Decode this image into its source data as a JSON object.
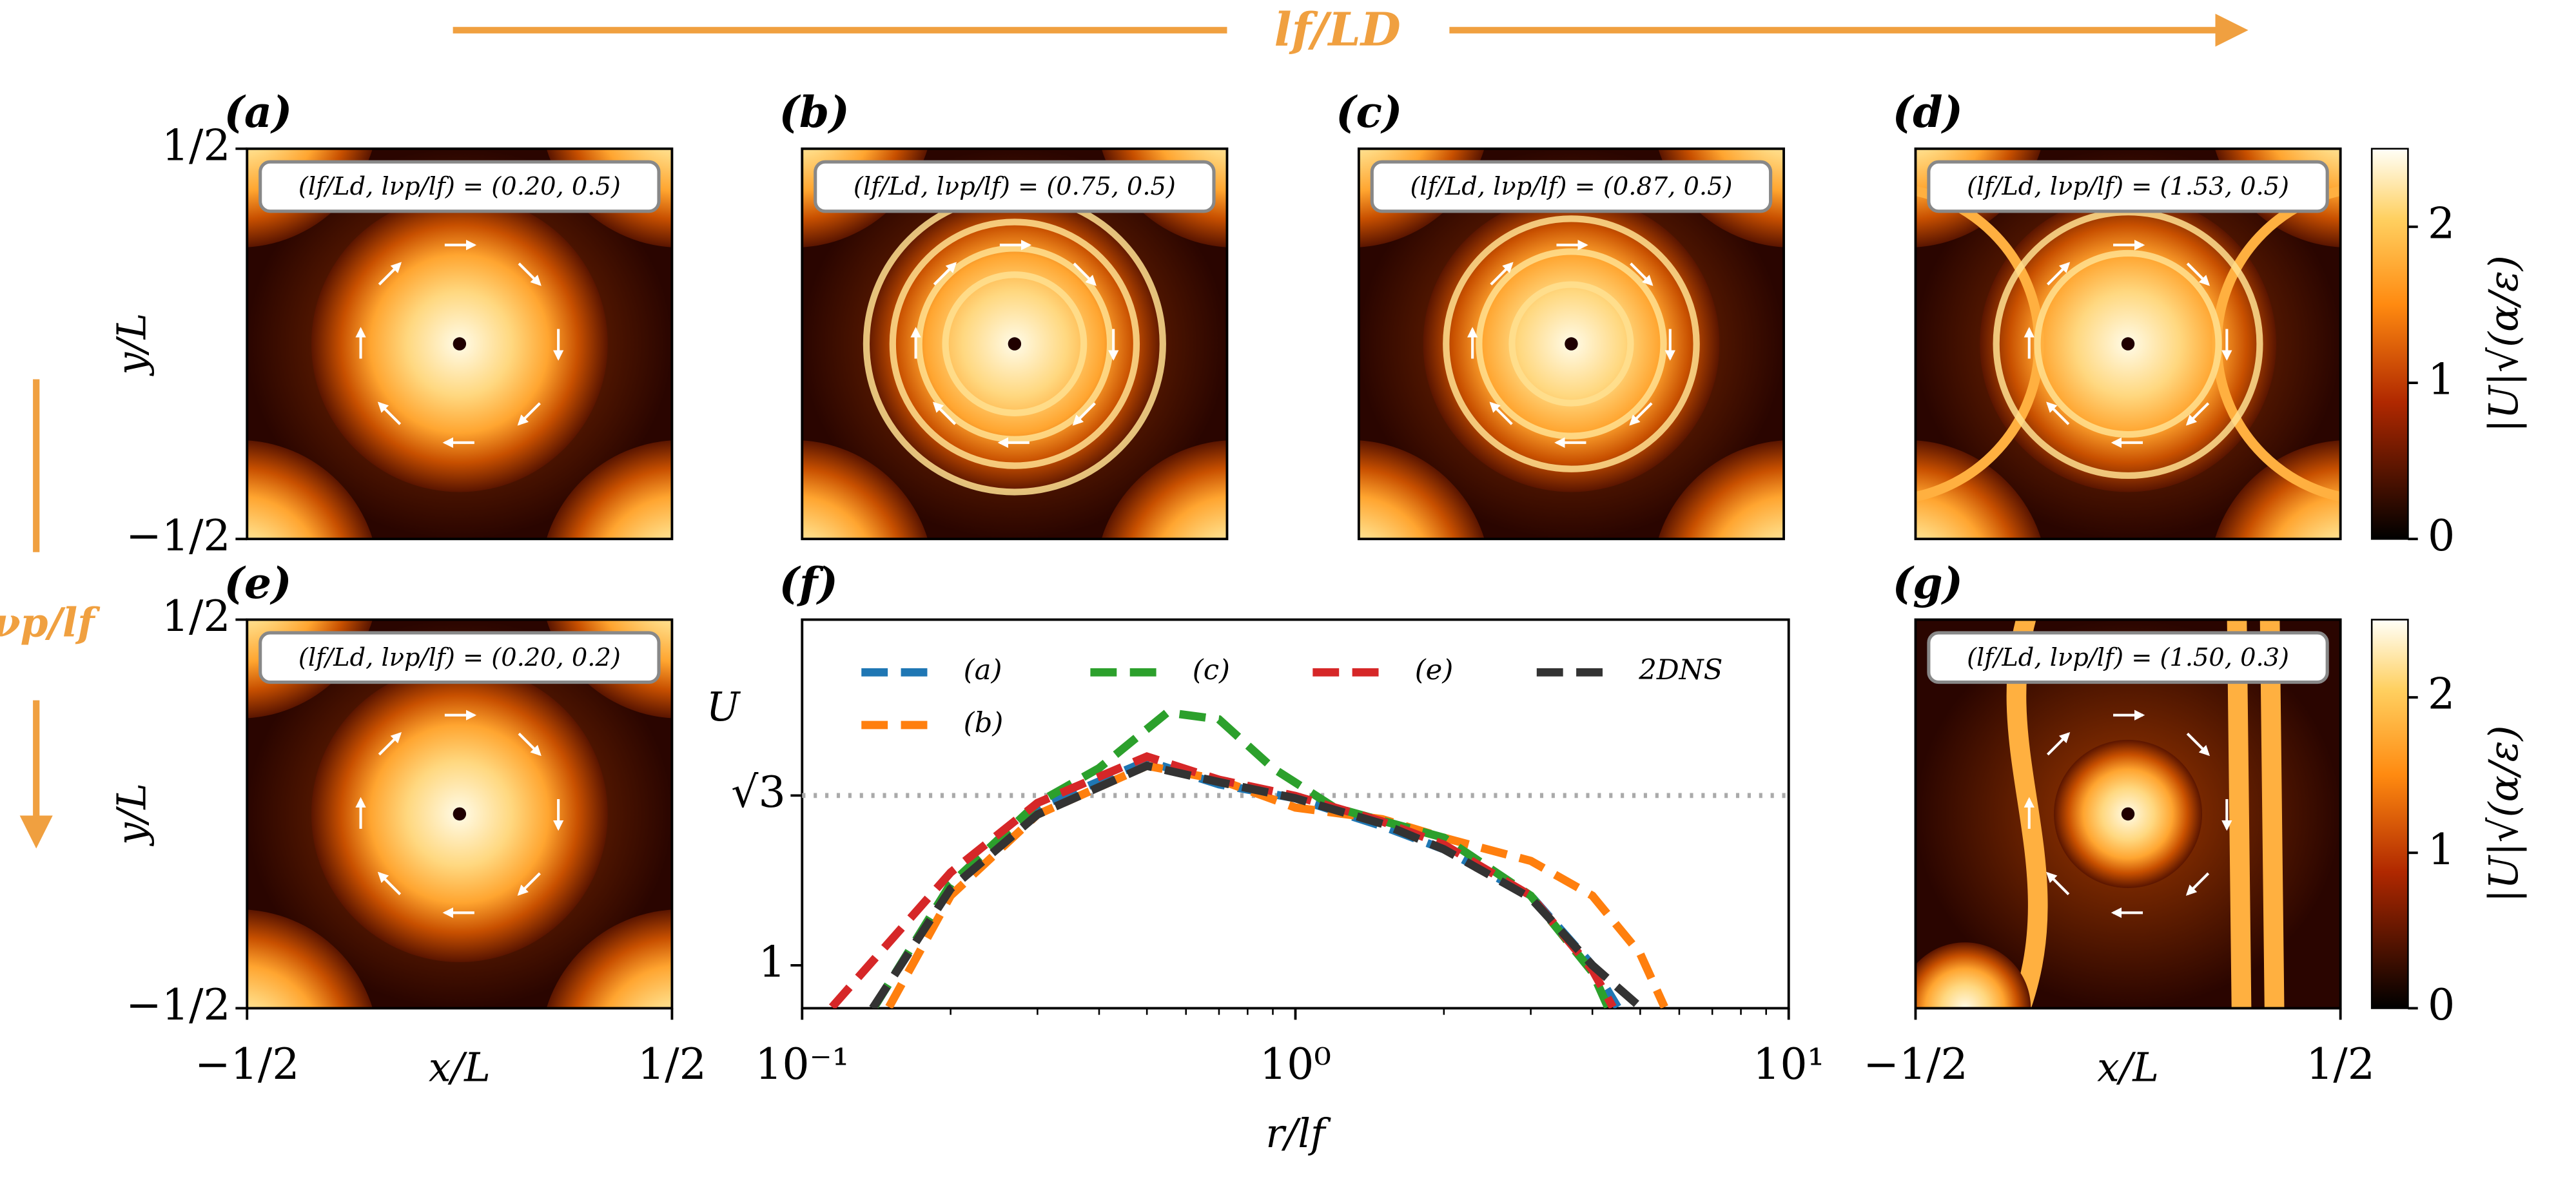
{
  "figure": {
    "top_label": "lf/LD",
    "left_label": "lνp/lf"
  },
  "chart_data": [
    {
      "type": "heatmap",
      "panel": "(a)",
      "annotation": "(lf/Ld, lνp/lf) = (0.20, 0.5)",
      "ylabel": "y/L",
      "xlim": [
        -0.5,
        0.5
      ],
      "ylim": [
        -0.5,
        0.5
      ],
      "yticks": [
        {
          "value": -0.5,
          "label": "−1/2"
        },
        {
          "value": 0.5,
          "label": "1/2"
        }
      ]
    },
    {
      "type": "heatmap",
      "panel": "(b)",
      "annotation": "(lf/Ld, lνp/lf) = (0.75, 0.5)",
      "xlim": [
        -0.5,
        0.5
      ],
      "ylim": [
        -0.5,
        0.5
      ]
    },
    {
      "type": "heatmap",
      "panel": "(c)",
      "annotation": "(lf/Ld, lνp/lf) = (0.87, 0.5)",
      "xlim": [
        -0.5,
        0.5
      ],
      "ylim": [
        -0.5,
        0.5
      ]
    },
    {
      "type": "heatmap",
      "panel": "(d)",
      "annotation": "(lf/Ld, lνp/lf) = (1.53, 0.5)",
      "xlim": [
        -0.5,
        0.5
      ],
      "ylim": [
        -0.5,
        0.5
      ],
      "colorbar": {
        "label": "|U|√(α/ε)",
        "lim": [
          0,
          2.5
        ],
        "ticks": [
          0,
          1,
          2
        ]
      }
    },
    {
      "type": "heatmap",
      "panel": "(e)",
      "annotation": "(lf/Ld, lνp/lf) = (0.20, 0.2)",
      "ylabel": "y/L",
      "xlabel": "x/L",
      "xlim": [
        -0.5,
        0.5
      ],
      "ylim": [
        -0.5,
        0.5
      ],
      "xticks": [
        {
          "value": -0.5,
          "label": "−1/2"
        },
        {
          "value": 0.5,
          "label": "1/2"
        }
      ],
      "yticks": [
        {
          "value": -0.5,
          "label": "−1/2"
        },
        {
          "value": 0.5,
          "label": "1/2"
        }
      ]
    },
    {
      "type": "line",
      "panel": "(f)",
      "xlabel": "r/lf",
      "ylabel": "U",
      "log_x": true,
      "xlim": [
        0.1,
        10
      ],
      "ylim": [
        0.815,
        2.49
      ],
      "xticks": [
        {
          "value": 0.1,
          "label": "10⁻¹"
        },
        {
          "value": 1,
          "label": "10⁰"
        },
        {
          "value": 10,
          "label": "10¹"
        }
      ],
      "yticks": [
        1,
        {
          "value": 1.732,
          "label": "√3"
        }
      ],
      "reference_line": 1.732,
      "series": [
        {
          "name": "(a)",
          "color": "#1f77b4",
          "x": [
            0.14,
            0.2,
            0.3,
            0.5,
            0.7,
            1,
            1.5,
            2,
            3,
            4,
            4.5
          ],
          "values": [
            0.82,
            1.35,
            1.68,
            1.88,
            1.78,
            1.72,
            1.6,
            1.5,
            1.3,
            1.0,
            0.82
          ]
        },
        {
          "name": "(b)",
          "color": "#ff7f0e",
          "x": [
            0.15,
            0.2,
            0.3,
            0.5,
            0.7,
            1,
            1.5,
            2,
            3,
            4,
            5,
            5.6
          ],
          "values": [
            0.82,
            1.3,
            1.65,
            1.86,
            1.8,
            1.68,
            1.63,
            1.55,
            1.45,
            1.3,
            1.05,
            0.82
          ]
        },
        {
          "name": "(c)",
          "color": "#2ca02c",
          "x": [
            0.14,
            0.2,
            0.3,
            0.4,
            0.55,
            0.7,
            0.9,
            1.2,
            2,
            3,
            4,
            4.3
          ],
          "values": [
            0.82,
            1.35,
            1.7,
            1.85,
            2.09,
            2.06,
            1.85,
            1.68,
            1.55,
            1.3,
            0.97,
            0.82
          ]
        },
        {
          "name": "(e)",
          "color": "#d62728",
          "x": [
            0.115,
            0.2,
            0.3,
            0.5,
            0.7,
            1,
            1.5,
            2,
            3,
            4,
            4.4
          ],
          "values": [
            0.82,
            1.4,
            1.7,
            1.9,
            1.8,
            1.73,
            1.62,
            1.52,
            1.3,
            0.98,
            0.82
          ]
        },
        {
          "name": "2DNS",
          "color": "#333333",
          "x": [
            0.139,
            0.2,
            0.3,
            0.5,
            0.7,
            1,
            1.5,
            2,
            3,
            4,
            5
          ],
          "values": [
            0.815,
            1.33,
            1.65,
            1.86,
            1.79,
            1.72,
            1.61,
            1.5,
            1.29,
            1.0,
            0.82
          ]
        }
      ]
    },
    {
      "type": "heatmap",
      "panel": "(g)",
      "annotation": "(lf/Ld, lνp/lf) = (1.50, 0.3)",
      "xlabel": "x/L",
      "xlim": [
        -0.5,
        0.5
      ],
      "ylim": [
        -0.5,
        0.5
      ],
      "xticks": [
        {
          "value": -0.5,
          "label": "−1/2"
        },
        {
          "value": 0.5,
          "label": "1/2"
        }
      ],
      "colorbar": {
        "label": "|U|√(α/ε)",
        "lim": [
          0,
          2.5
        ],
        "ticks": [
          0,
          1,
          2
        ]
      }
    }
  ]
}
